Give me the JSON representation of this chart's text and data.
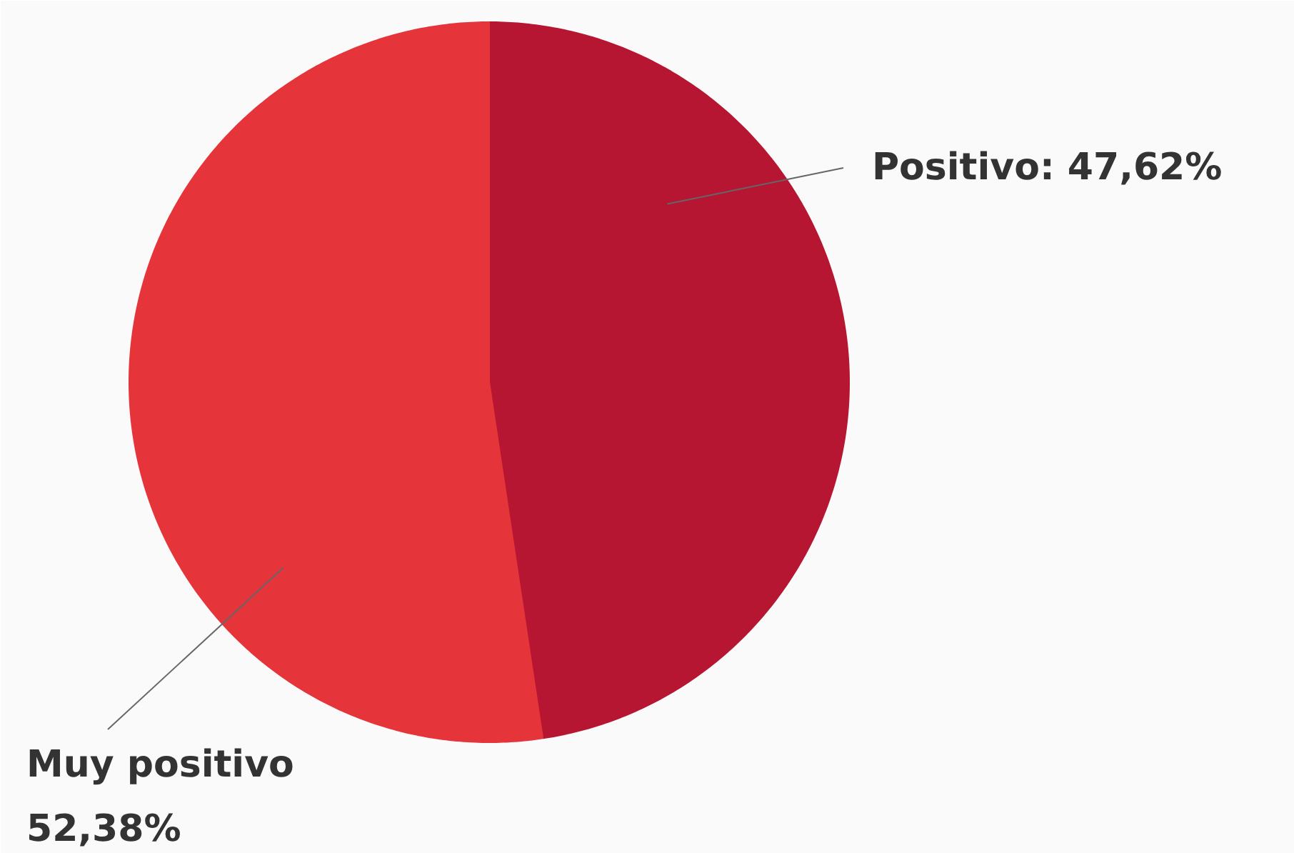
{
  "chart_data": {
    "type": "pie",
    "categories": [
      "Positivo",
      "Muy positivo"
    ],
    "values": [
      47.62,
      52.38
    ],
    "colors": [
      "#b71632",
      "#e5353b"
    ],
    "value_labels": [
      "47,62%",
      "52,38%"
    ]
  }
}
